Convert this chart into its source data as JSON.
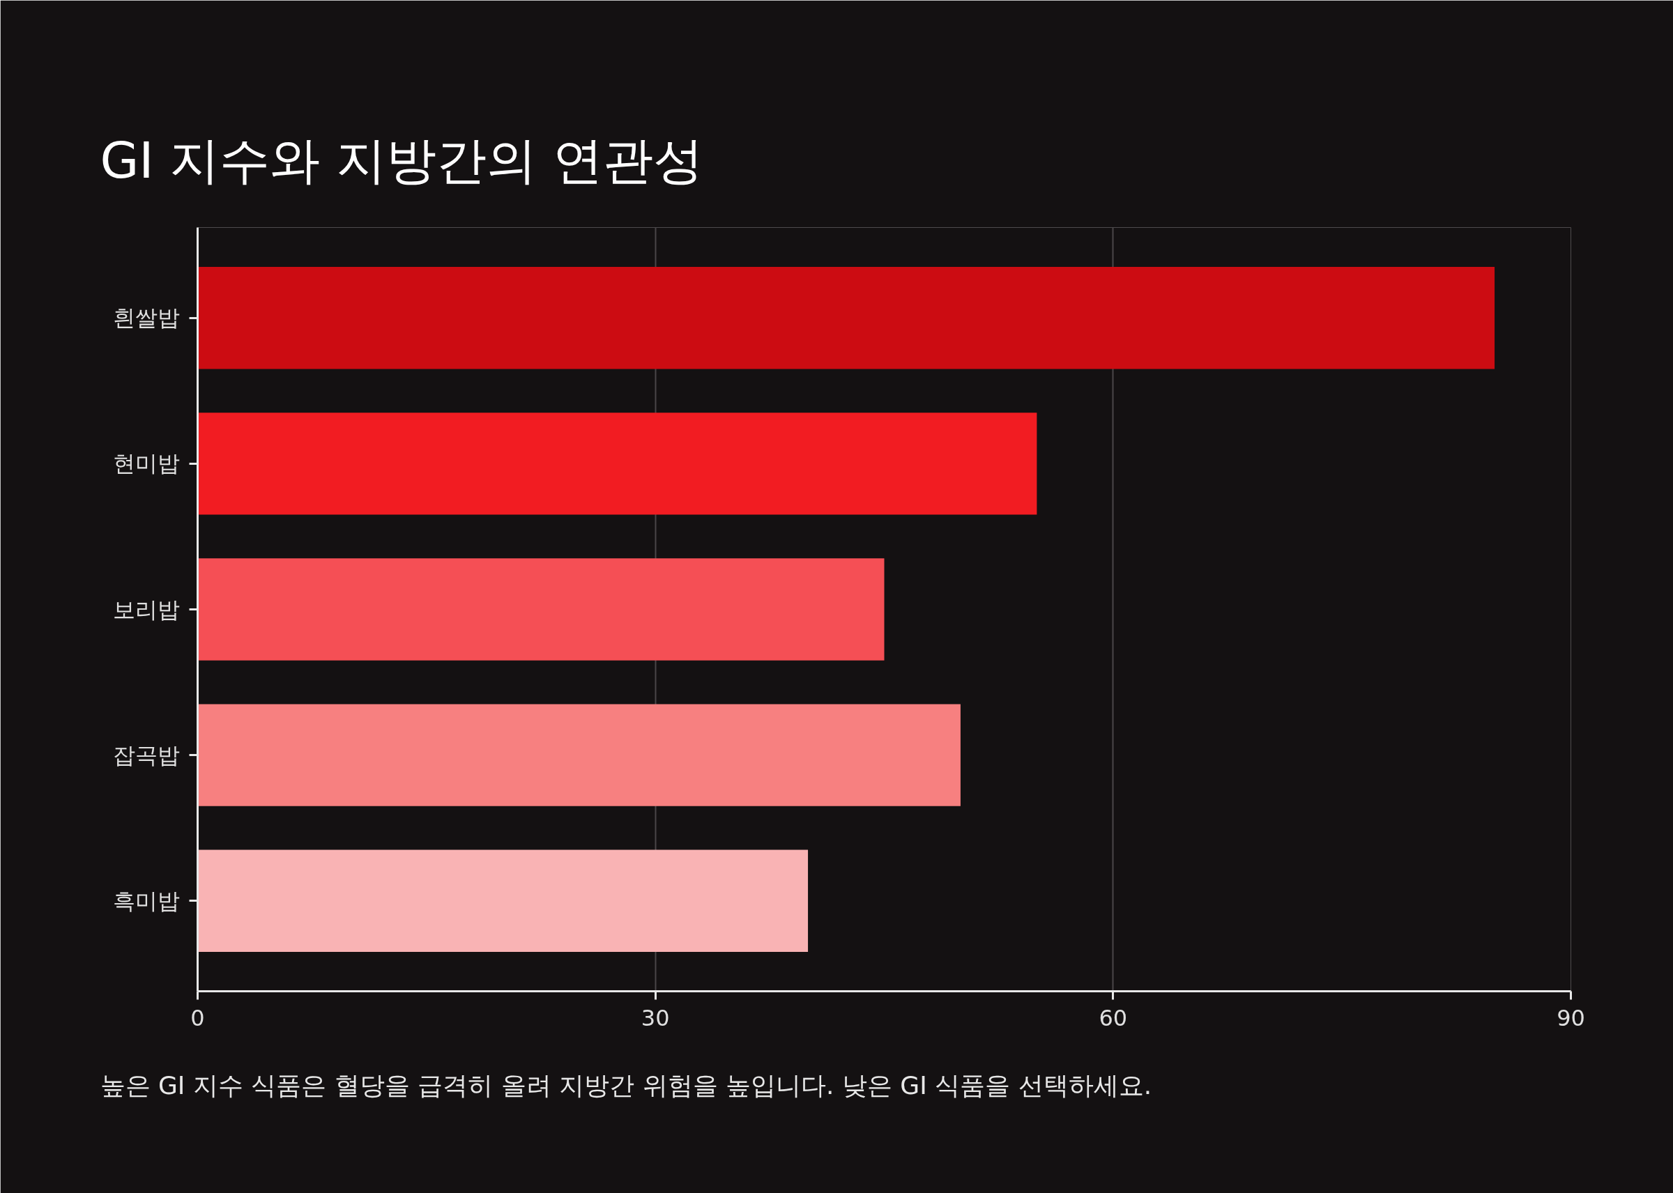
{
  "chart_data": {
    "type": "bar",
    "orientation": "horizontal",
    "title": "GI 지수와 지방간의 연관성",
    "categories": [
      "흰쌀밥",
      "현미밥",
      "보리밥",
      "잡곡밥",
      "흑미밥"
    ],
    "values": [
      85,
      55,
      45,
      50,
      40
    ],
    "colors": [
      "#cc0c12",
      "#f21c22",
      "#f54f55",
      "#f78080",
      "#f9b3b4"
    ],
    "xlim": [
      0,
      90
    ],
    "xticks": [
      0,
      30,
      60,
      90
    ],
    "grid": "x",
    "annotations": [
      "높은 GI 지수 식품은 혈당을 급격히 올려 지방간 위험을 높입니다. 낮은 GI 식품을 선택하세요."
    ]
  }
}
